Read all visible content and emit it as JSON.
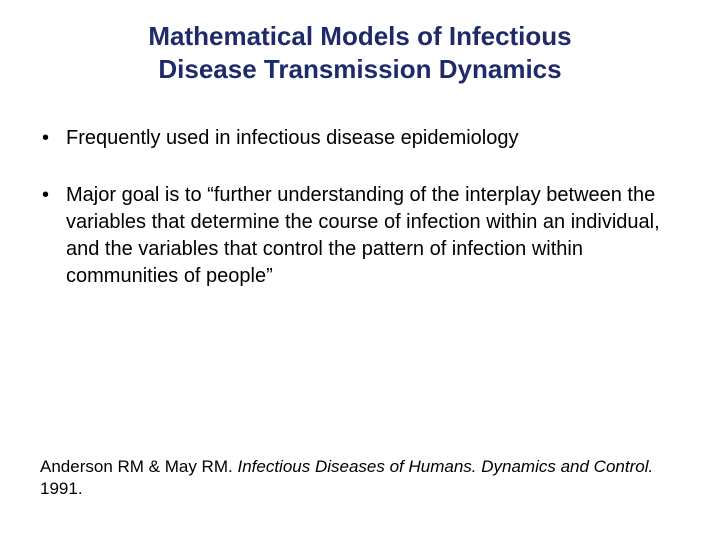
{
  "title": {
    "line1": "Mathematical Models of Infectious",
    "line2": "Disease Transmission Dynamics",
    "color": "#1f2a6b",
    "fontsize": 26
  },
  "bullets": [
    {
      "text": "Frequently used in infectious disease epidemiology"
    },
    {
      "text": "Major goal is to “further understanding of the interplay between the variables that determine the course of infection within an individual, and the variables that control the pattern of infection within communities of people”"
    }
  ],
  "bullet_style": {
    "color": "#000000",
    "fontsize": 20,
    "gap_between": 30
  },
  "citation": {
    "authors": "Anderson RM & May RM.",
    "work": "Infectious Diseases of Humans. Dynamics and Control.",
    "year": "1991.",
    "color": "#000000",
    "fontsize": 17
  },
  "background_color": "#ffffff"
}
